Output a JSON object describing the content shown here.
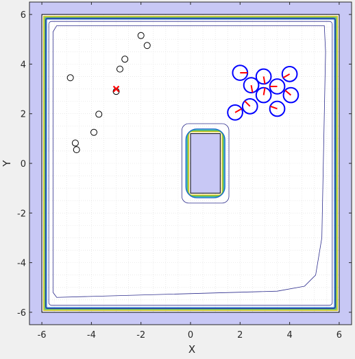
{
  "chart_data": {
    "type": "scatter",
    "title": "",
    "xlabel": "X",
    "ylabel": "Y",
    "xlim": [
      -6.5,
      6.5
    ],
    "ylim": [
      -6.5,
      6.5
    ],
    "xticks": [
      -6,
      -4,
      -2,
      0,
      2,
      4,
      6
    ],
    "yticks": [
      -6,
      -4,
      -2,
      0,
      2,
      4,
      6
    ],
    "xtick_labels": [
      "-6",
      "-4",
      "-2",
      "0",
      "2",
      "4",
      "6"
    ],
    "ytick_labels": [
      "-6",
      "-4",
      "-2",
      "0",
      "2",
      "4",
      "6"
    ],
    "grid": "minor dotted",
    "arena": {
      "x": [
        -6,
        6
      ],
      "y": [
        -6,
        6
      ]
    },
    "obstacle": {
      "x": [
        0,
        1.2
      ],
      "y": [
        -1.2,
        1.2
      ]
    },
    "colors": {
      "outer_fill": "#c8c8f5",
      "obstacle_fill": "#c8c8f5",
      "robot": "#0000ff",
      "heading": "#ff0000",
      "target": "#ff0000",
      "contours": [
        "#2b2b8c",
        "#1f5fc9",
        "#1fa7c9",
        "#3cb46e",
        "#a6c93a",
        "#d9c21f"
      ]
    },
    "waypoints": [
      [
        -4.85,
        3.45
      ],
      [
        -3.0,
        2.9
      ],
      [
        -2.85,
        3.8
      ],
      [
        -2.65,
        4.2
      ],
      [
        -2.0,
        5.15
      ],
      [
        -1.75,
        4.75
      ],
      [
        -3.7,
        1.98
      ],
      [
        -3.9,
        1.25
      ],
      [
        -4.65,
        0.82
      ],
      [
        -4.6,
        0.55
      ]
    ],
    "target": [
      -3.0,
      3.0
    ],
    "robots": [
      {
        "x": 1.8,
        "y": 2.05,
        "heading": 30
      },
      {
        "x": 2.4,
        "y": 2.3,
        "heading": 135
      },
      {
        "x": 3.5,
        "y": 2.2,
        "heading": 160
      },
      {
        "x": 2.0,
        "y": 3.65,
        "heading": 0
      },
      {
        "x": 2.45,
        "y": 3.15,
        "heading": -80
      },
      {
        "x": 2.95,
        "y": 3.5,
        "heading": -80
      },
      {
        "x": 2.95,
        "y": 2.75,
        "heading": 80
      },
      {
        "x": 3.5,
        "y": 3.1,
        "heading": 180
      },
      {
        "x": 4.0,
        "y": 3.6,
        "heading": 210
      },
      {
        "x": 4.05,
        "y": 2.75,
        "heading": 140
      }
    ]
  }
}
